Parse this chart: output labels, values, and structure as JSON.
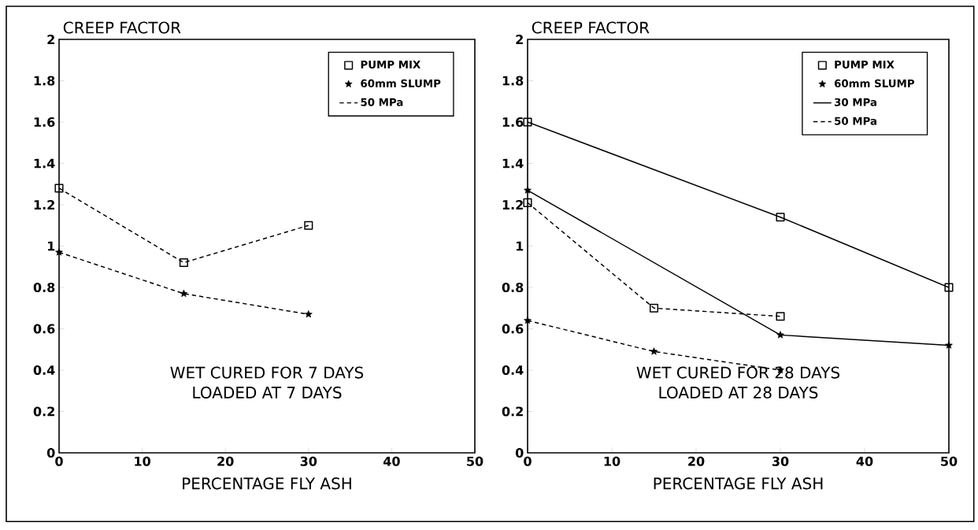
{
  "chart_data": [
    {
      "type": "line",
      "ylabel": "CREEP FACTOR",
      "xlabel": "PERCENTAGE FLY ASH",
      "xlim": [
        0,
        50
      ],
      "ylim": [
        0,
        2
      ],
      "xticks": [
        0,
        10,
        20,
        30,
        40,
        50
      ],
      "yticks": [
        0,
        0.2,
        0.4,
        0.6,
        0.8,
        1,
        1.2,
        1.4,
        1.6,
        1.8,
        2
      ],
      "legend": "top right",
      "grid": false,
      "annotations": [
        "WET CURED FOR 7 DAYS",
        "LOADED AT 7 DAYS"
      ],
      "series": [
        {
          "color": "#000000",
          "marker": "square",
          "line_style": "dashed",
          "x": [
            0,
            15,
            30
          ],
          "values": [
            1.28,
            0.92,
            1.1
          ]
        },
        {
          "color": "#000000",
          "marker": "star",
          "line_style": "dashed",
          "x": [
            0,
            15,
            30
          ],
          "values": [
            0.97,
            0.77,
            0.67
          ]
        },
        {
          "name": "PUMP MIX",
          "color": "#000000",
          "marker": "square"
        },
        {
          "name": "60mm SLUMP",
          "color": "#000000",
          "marker": "star"
        },
        {
          "name": "50 MPa",
          "color": "#000000",
          "marker": "none",
          "line_style": "dashed"
        }
      ]
    },
    {
      "type": "line",
      "ylabel": "CREEP FACTOR",
      "xlabel": "PERCENTAGE FLY ASH",
      "xlim": [
        0,
        50
      ],
      "ylim": [
        0,
        2
      ],
      "xticks": [
        0,
        10,
        20,
        30,
        40,
        50
      ],
      "yticks": [
        0,
        0.2,
        0.4,
        0.6,
        0.8,
        1,
        1.2,
        1.4,
        1.6,
        1.8,
        2
      ],
      "legend": "top right",
      "grid": false,
      "annotations": [
        "WET CURED FOR 28 DAYS",
        "LOADED AT 28 DAYS"
      ],
      "series": [
        {
          "color": "#000000",
          "marker": "square",
          "line_style": "solid",
          "x": [
            0,
            30,
            50
          ],
          "values": [
            1.6,
            1.14,
            0.8
          ]
        },
        {
          "color": "#000000",
          "marker": "star",
          "line_style": "solid",
          "x": [
            0,
            30,
            50
          ],
          "values": [
            1.27,
            0.57,
            0.52
          ]
        },
        {
          "color": "#000000",
          "marker": "square",
          "line_style": "dashed",
          "x": [
            0,
            15,
            30
          ],
          "values": [
            1.21,
            0.7,
            0.66
          ]
        },
        {
          "color": "#000000",
          "marker": "star",
          "line_style": "dashed",
          "x": [
            0,
            15,
            30
          ],
          "values": [
            0.64,
            0.49,
            0.4
          ]
        },
        {
          "name": "PUMP MIX",
          "color": "#000000",
          "marker": "square"
        },
        {
          "name": "60mm SLUMP",
          "color": "#000000",
          "marker": "star"
        },
        {
          "name": "30 MPa",
          "color": "#000000",
          "marker": "none",
          "line_style": "solid"
        },
        {
          "name": "50 MPa",
          "color": "#000000",
          "marker": "none",
          "line_style": "dashed"
        }
      ]
    }
  ]
}
